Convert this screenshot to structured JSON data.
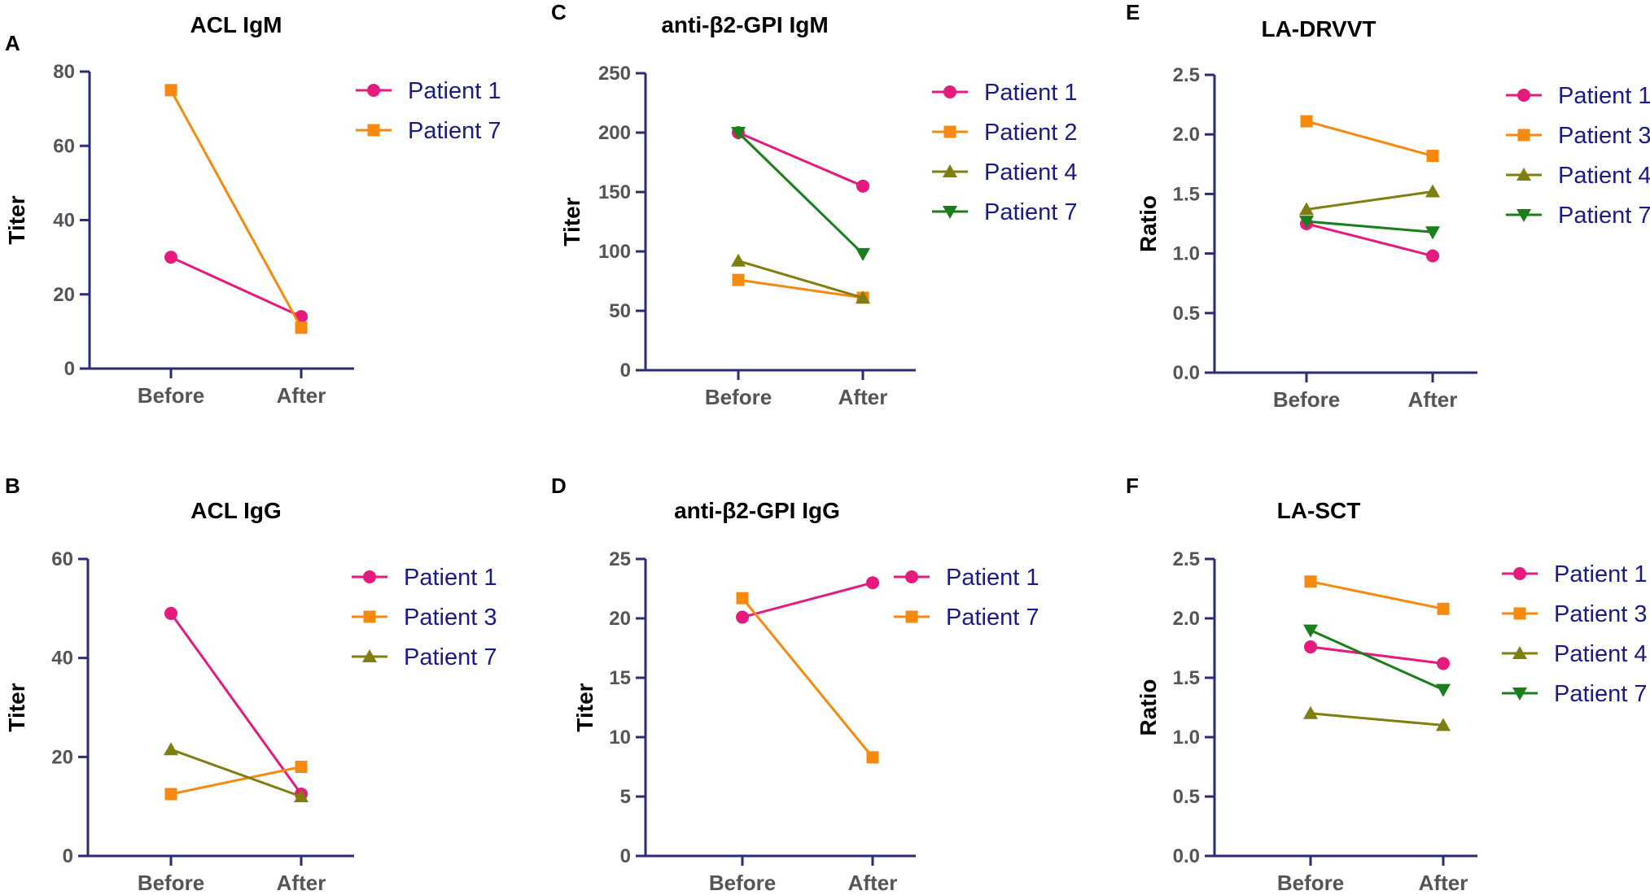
{
  "figure_colors": {
    "axis": "#2b2b7a",
    "tick_label": "#555555",
    "legend_text": "#1a1a8c"
  },
  "series_styles": {
    "Patient 1": {
      "color": "#e6197f",
      "marker": "circle"
    },
    "Patient 2": {
      "color": "#f7890f",
      "marker": "square"
    },
    "Patient 3": {
      "color": "#f7890f",
      "marker": "square"
    },
    "Patient 4": {
      "color": "#7f7f10",
      "marker": "triangle-up"
    },
    "Patient 7": {
      "color": "#1a7f1a",
      "marker": "triangle-down"
    }
  },
  "chart_data": [
    {
      "id": "A",
      "type": "line",
      "title": "ACL IgM",
      "ylabel": "Titer",
      "categories": [
        "Before",
        "After"
      ],
      "ylim": [
        0,
        80
      ],
      "yticks": [
        "0",
        "20",
        "40",
        "60",
        "80"
      ],
      "series": [
        {
          "name": "Patient 1",
          "values": [
            30,
            14
          ],
          "color": "#e6197f",
          "marker": "circle"
        },
        {
          "name": "Patient 7",
          "values": [
            75,
            11
          ],
          "color": "#f7890f",
          "marker": "square"
        }
      ]
    },
    {
      "id": "B",
      "type": "line",
      "title": "ACL IgG",
      "ylabel": "Titer",
      "categories": [
        "Before",
        "After"
      ],
      "ylim": [
        0,
        60
      ],
      "yticks": [
        "0",
        "20",
        "40",
        "60"
      ],
      "series": [
        {
          "name": "Patient 1",
          "values": [
            49,
            12.5
          ],
          "color": "#e6197f",
          "marker": "circle"
        },
        {
          "name": "Patient 3",
          "values": [
            12.5,
            18
          ],
          "color": "#f7890f",
          "marker": "square"
        },
        {
          "name": "Patient 7",
          "values": [
            21.5,
            12
          ],
          "color": "#7f7f10",
          "marker": "triangle-up"
        }
      ]
    },
    {
      "id": "C",
      "type": "line",
      "title": "anti-β2-GPI IgM",
      "ylabel": "Titer",
      "categories": [
        "Before",
        "After"
      ],
      "ylim": [
        0,
        250
      ],
      "yticks": [
        "0",
        "50",
        "100",
        "150",
        "200",
        "250"
      ],
      "series": [
        {
          "name": "Patient 1",
          "values": [
            200,
            155
          ],
          "color": "#e6197f",
          "marker": "circle"
        },
        {
          "name": "Patient 2",
          "values": [
            76,
            61
          ],
          "color": "#f7890f",
          "marker": "square"
        },
        {
          "name": "Patient 4",
          "values": [
            92,
            61
          ],
          "color": "#7f7f10",
          "marker": "triangle-up"
        },
        {
          "name": "Patient 7",
          "values": [
            200,
            98
          ],
          "color": "#1a7f1a",
          "marker": "triangle-down"
        }
      ]
    },
    {
      "id": "D",
      "type": "line",
      "title": "anti-β2-GPI IgG",
      "ylabel": "Titer",
      "categories": [
        "Before",
        "After"
      ],
      "ylim": [
        0,
        25
      ],
      "yticks": [
        "0",
        "5",
        "10",
        "15",
        "20",
        "25"
      ],
      "series": [
        {
          "name": "Patient 1",
          "values": [
            20.1,
            23
          ],
          "color": "#e6197f",
          "marker": "circle"
        },
        {
          "name": "Patient 7",
          "values": [
            21.7,
            8.3
          ],
          "color": "#f7890f",
          "marker": "square"
        }
      ]
    },
    {
      "id": "E",
      "type": "line",
      "title": "LA-DRVVT",
      "ylabel": "Ratio",
      "categories": [
        "Before",
        "After"
      ],
      "ylim": [
        0,
        2.5
      ],
      "yticks": [
        "0.0",
        "0.5",
        "1.0",
        "1.5",
        "2.0",
        "2.5"
      ],
      "series": [
        {
          "name": "Patient 1",
          "values": [
            1.25,
            0.98
          ],
          "color": "#e6197f",
          "marker": "circle"
        },
        {
          "name": "Patient 3",
          "values": [
            2.11,
            1.82
          ],
          "color": "#f7890f",
          "marker": "square"
        },
        {
          "name": "Patient 4",
          "values": [
            1.37,
            1.52
          ],
          "color": "#7f7f10",
          "marker": "triangle-up"
        },
        {
          "name": "Patient 7",
          "values": [
            1.27,
            1.18
          ],
          "color": "#1a7f1a",
          "marker": "triangle-down"
        }
      ]
    },
    {
      "id": "F",
      "type": "line",
      "title": "LA-SCT",
      "ylabel": "Ratio",
      "categories": [
        "Before",
        "After"
      ],
      "ylim": [
        0,
        2.5
      ],
      "yticks": [
        "0.0",
        "0.5",
        "1.0",
        "1.5",
        "2.0",
        "2.5"
      ],
      "series": [
        {
          "name": "Patient 1",
          "values": [
            1.76,
            1.62
          ],
          "color": "#e6197f",
          "marker": "circle"
        },
        {
          "name": "Patient 3",
          "values": [
            2.31,
            2.08
          ],
          "color": "#f7890f",
          "marker": "square"
        },
        {
          "name": "Patient 4",
          "values": [
            1.2,
            1.1
          ],
          "color": "#7f7f10",
          "marker": "triangle-up"
        },
        {
          "name": "Patient 7",
          "values": [
            1.9,
            1.4
          ],
          "color": "#1a7f1a",
          "marker": "triangle-down"
        }
      ]
    }
  ]
}
